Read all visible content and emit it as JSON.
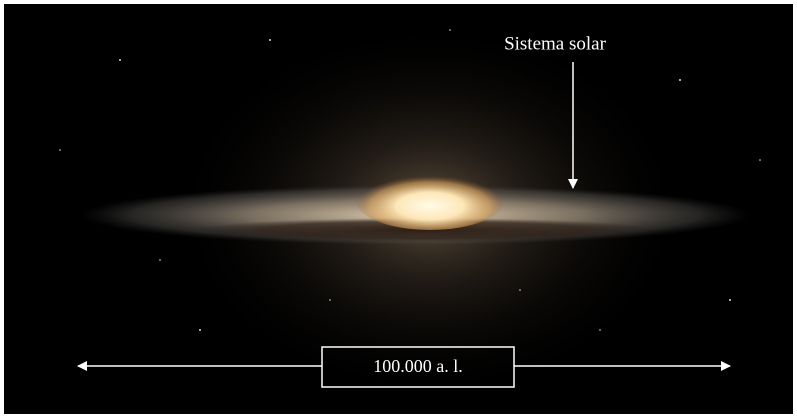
{
  "labels": {
    "solar_system": "Sistema solar",
    "scale": "100.000 a. l."
  }
}
